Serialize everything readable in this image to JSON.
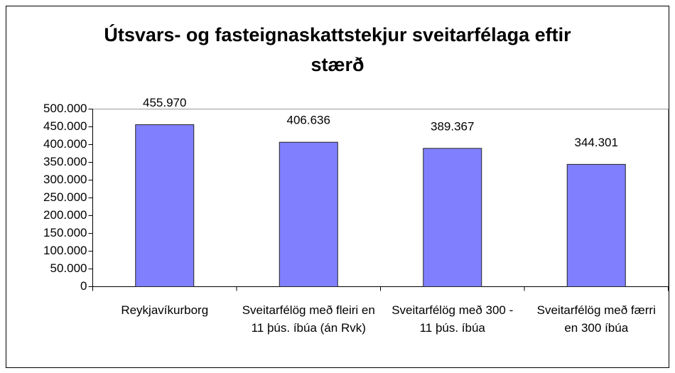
{
  "chart_data": {
    "type": "bar",
    "title": "Útsvars- og fasteignaskattstekjur sveitarfélaga eftir stærð",
    "categories": [
      "Reykjavíkurborg",
      "Sveitarfélög með fleiri en 11 þús. íbúa (án Rvk)",
      "Sveitarfélög með 300 - 11 þús. íbúa",
      "Sveitarfélög með færri en 300 íbúa"
    ],
    "values": [
      455970,
      406636,
      389367,
      344301
    ],
    "value_labels": [
      "455.970",
      "406.636",
      "389.367",
      "344.301"
    ],
    "color": "#8080ff",
    "ylim": [
      0,
      500000
    ],
    "yticks": [
      0,
      {
        "value": 50000,
        "label": "50.000"
      },
      {
        "value": 100000,
        "label": "100.000"
      },
      {
        "value": 150000,
        "label": "150.000"
      },
      {
        "value": 200000,
        "label": "200.000"
      },
      {
        "value": 250000,
        "label": "250.000"
      },
      {
        "value": 300000,
        "label": "300.000"
      },
      {
        "value": 350000,
        "label": "350.000"
      },
      {
        "value": 400000,
        "label": "400.000"
      },
      {
        "value": 450000,
        "label": "450.000"
      },
      {
        "value": 500000,
        "label": "500.000"
      }
    ],
    "grid": false
  }
}
